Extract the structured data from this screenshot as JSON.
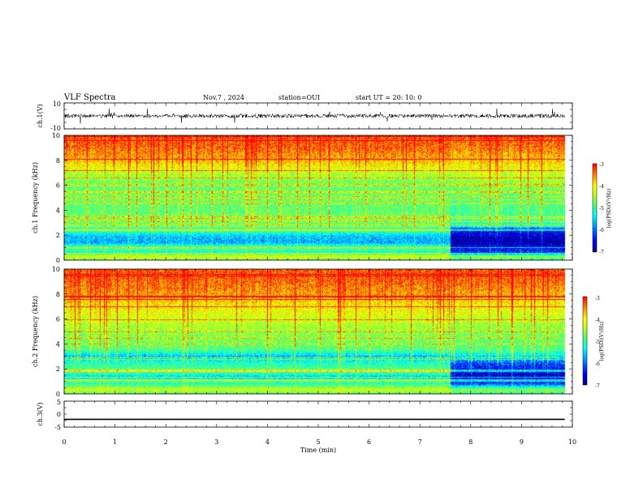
{
  "header": {
    "title": "VLF Spectra",
    "date": "Nov.7 , 2024",
    "station": "station=OUI",
    "start": "start UT = 20: 10: 0"
  },
  "colors": {
    "cmap": [
      "#00007f",
      "#0000ff",
      "#00a0ff",
      "#00ffff",
      "#40ff80",
      "#b0ff20",
      "#ffff00",
      "#ff8000",
      "#ff0000"
    ],
    "waveform": "#000000",
    "axes": "#000000"
  },
  "colorbar": {
    "label": "log(PSD)(V²/Hz)",
    "ticks": [
      "-3",
      "-4",
      "-5",
      "-6",
      "-7"
    ]
  },
  "chart_data": [
    {
      "id": "ch1-waveform",
      "type": "line",
      "ylabel": "ch.1(V)",
      "ylim": [
        -10,
        10
      ],
      "ytick_labels": [
        "10",
        "-10"
      ],
      "xlim": [
        0,
        10
      ],
      "baseline": 0,
      "amplitude": 1.5
    },
    {
      "id": "ch1-spectrogram",
      "type": "heatmap",
      "ylabel": "ch.1\nFrequency (kHz)",
      "xlim": [
        0,
        10
      ],
      "ylim": [
        0,
        10
      ],
      "ytick_labels": [
        "0",
        "2",
        "4",
        "6",
        "8",
        "10"
      ],
      "data_end_min": 9.85,
      "zlim": [
        -7,
        -3
      ],
      "regime_change_min": 7.6,
      "profile_before": [
        [
          0,
          -4.8
        ],
        [
          0.3,
          -4.2
        ],
        [
          0.6,
          -5.4
        ],
        [
          1.0,
          -4.9
        ],
        [
          1.4,
          -5.9
        ],
        [
          1.9,
          -5.8
        ],
        [
          2.3,
          -5.2
        ],
        [
          2.8,
          -5.0
        ],
        [
          3.2,
          -4.7
        ],
        [
          4.0,
          -4.9
        ],
        [
          5.0,
          -4.8
        ],
        [
          6.0,
          -4.9
        ],
        [
          7.0,
          -4.4
        ],
        [
          8.0,
          -3.7
        ],
        [
          9.0,
          -3.4
        ],
        [
          10.0,
          -3.3
        ]
      ],
      "profile_after": [
        [
          0,
          -5.2
        ],
        [
          0.3,
          -4.6
        ],
        [
          0.6,
          -6.4
        ],
        [
          1.0,
          -6.6
        ],
        [
          1.5,
          -6.9
        ],
        [
          2.0,
          -6.7
        ],
        [
          2.4,
          -6.5
        ],
        [
          2.8,
          -5.4
        ],
        [
          3.2,
          -5.0
        ],
        [
          4.0,
          -5.0
        ],
        [
          5.0,
          -4.9
        ],
        [
          6.0,
          -4.7
        ],
        [
          7.0,
          -4.3
        ],
        [
          8.0,
          -3.8
        ],
        [
          9.0,
          -3.5
        ],
        [
          10.0,
          -3.3
        ]
      ]
    },
    {
      "id": "ch2-spectrogram",
      "type": "heatmap",
      "ylabel": "ch.2\nFrequency (kHz)",
      "xlim": [
        0,
        10
      ],
      "ylim": [
        0,
        10
      ],
      "ytick_labels": [
        "0",
        "2",
        "4",
        "6",
        "8",
        "10"
      ],
      "data_end_min": 9.85,
      "zlim": [
        -7,
        -3
      ],
      "regime_change_min": 7.6,
      "profile_before": [
        [
          0,
          -5.0
        ],
        [
          0.3,
          -4.3
        ],
        [
          0.8,
          -5.2
        ],
        [
          1.4,
          -5.7
        ],
        [
          1.8,
          -4.9
        ],
        [
          2.5,
          -5.3
        ],
        [
          3.0,
          -5.8
        ],
        [
          3.5,
          -5.0
        ],
        [
          4.0,
          -4.8
        ],
        [
          5.0,
          -4.6
        ],
        [
          6.0,
          -4.3
        ],
        [
          7.0,
          -4.0
        ],
        [
          8.0,
          -3.6
        ],
        [
          9.0,
          -3.4
        ],
        [
          10.0,
          -3.3
        ]
      ],
      "profile_after": [
        [
          0,
          -5.3
        ],
        [
          0.3,
          -4.6
        ],
        [
          0.8,
          -6.3
        ],
        [
          1.4,
          -6.7
        ],
        [
          1.8,
          -6.6
        ],
        [
          2.4,
          -6.3
        ],
        [
          3.0,
          -5.6
        ],
        [
          3.5,
          -5.0
        ],
        [
          4.0,
          -4.9
        ],
        [
          5.0,
          -4.7
        ],
        [
          6.0,
          -4.4
        ],
        [
          7.0,
          -4.1
        ],
        [
          8.0,
          -3.7
        ],
        [
          9.0,
          -3.4
        ],
        [
          10.0,
          -3.3
        ]
      ]
    },
    {
      "id": "ch3-waveform",
      "type": "line",
      "ylabel": "ch.3(V)",
      "xlabel": "Time (min)",
      "ylim": [
        -5,
        5
      ],
      "ytick_labels": [
        "5",
        "0",
        "-5"
      ],
      "xlim": [
        0,
        10
      ],
      "xtick_labels": [
        "0",
        "1",
        "2",
        "3",
        "4",
        "5",
        "6",
        "7",
        "8",
        "9",
        "10"
      ],
      "x": [
        0,
        9.85
      ],
      "y": [
        -2,
        -2
      ]
    }
  ]
}
